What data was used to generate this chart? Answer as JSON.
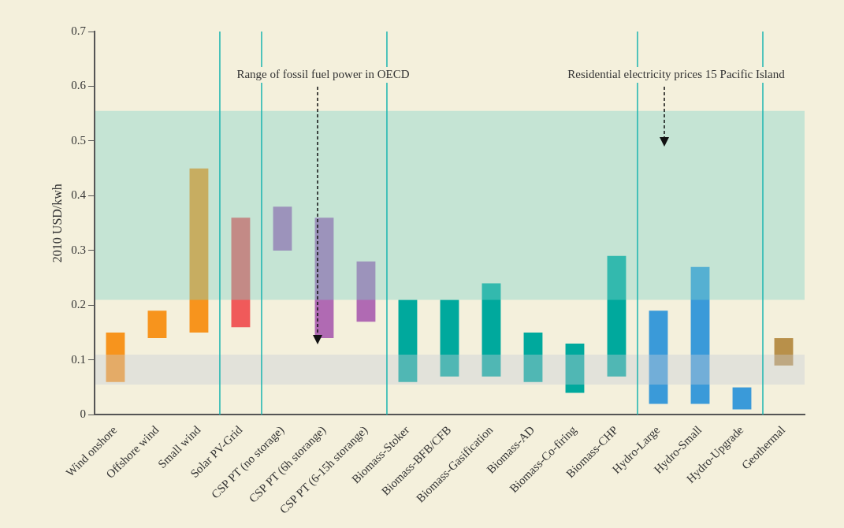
{
  "chart_data": {
    "type": "bar",
    "ylabel": "2010 USD/kwh",
    "categories": [
      "Wind onshore",
      "Offshore wind",
      "Small wind",
      "Solar PV-Grid",
      "CSP PT (no storage)",
      "CSP PT (6h storange)",
      "CSP PT (6-15h storange)",
      "Biomass-Stoker",
      "Biomass-BFB/CFB",
      "Biomass-Gasification",
      "Biomass-AD",
      "Biomass-Co-firing",
      "Biomass-CHP",
      "Hydro-Large",
      "Hydro-Small",
      "Hydro-Upgrade",
      "Geothermal"
    ],
    "base": [
      0.06,
      0.14,
      0.15,
      0.16,
      0.3,
      0.14,
      0.17,
      0.06,
      0.07,
      0.07,
      0.06,
      0.04,
      0.07,
      0.02,
      0.02,
      0.01,
      0.09
    ],
    "values": [
      0.09,
      0.05,
      0.3,
      0.2,
      0.08,
      0.22,
      0.11,
      0.15,
      0.14,
      0.17,
      0.09,
      0.09,
      0.22,
      0.17,
      0.25,
      0.04,
      0.05
    ],
    "colors": [
      "#f7941d",
      "#f7941d",
      "#f7941d",
      "#f05a5a",
      "#b06ab3",
      "#b06ab3",
      "#b06ab3",
      "#00a99d",
      "#00a99d",
      "#00a99d",
      "#00a99d",
      "#00a99d",
      "#00a99d",
      "#3a9ad9",
      "#3a9ad9",
      "#3a9ad9",
      "#b8904a"
    ],
    "ylim": [
      0,
      0.7
    ],
    "yticks": [
      0,
      0.1,
      0.2,
      0.3,
      0.4,
      0.5,
      0.6,
      0.7
    ],
    "grid": false,
    "legend": false,
    "bands": [
      {
        "axis": "y",
        "from": 0.055,
        "to": 0.11,
        "color": "#c8ccd8"
      },
      {
        "axis": "y",
        "from": 0.21,
        "to": 0.555,
        "color": "#7fd1c7"
      }
    ],
    "annotations": [
      "Range of fossil fuel power in OECD",
      "Residential electricity prices 15 Pacific Island"
    ]
  }
}
